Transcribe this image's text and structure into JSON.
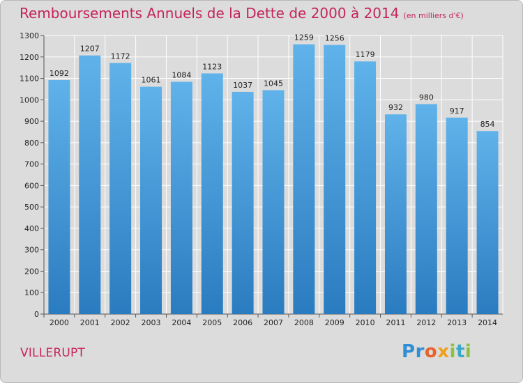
{
  "title": "Remboursements Annuels de la Dette de 2000 à 2014",
  "unit": "(en milliers d'€)",
  "commune": "VILLERUPT",
  "logo": "Proxiti",
  "colors": {
    "title": "#c4245a",
    "bar_top": "#60b2ea",
    "bar_bottom": "#2a7cc0",
    "background": "#dcdcdc"
  },
  "chart_data": {
    "type": "bar",
    "title": "Remboursements Annuels de la Dette de 2000 à 2014",
    "categories": [
      "2000",
      "2001",
      "2002",
      "2003",
      "2004",
      "2005",
      "2006",
      "2007",
      "2008",
      "2009",
      "2010",
      "2011",
      "2012",
      "2013",
      "2014"
    ],
    "values": [
      1092,
      1207,
      1172,
      1061,
      1084,
      1123,
      1037,
      1045,
      1259,
      1256,
      1179,
      932,
      980,
      917,
      854
    ],
    "xlabel": "",
    "ylabel": "",
    "ylim": [
      0,
      1300
    ],
    "yticks": [
      0,
      100,
      200,
      300,
      400,
      500,
      600,
      700,
      800,
      900,
      1000,
      1100,
      1200,
      1300
    ],
    "grid": true,
    "data_labels": true
  }
}
